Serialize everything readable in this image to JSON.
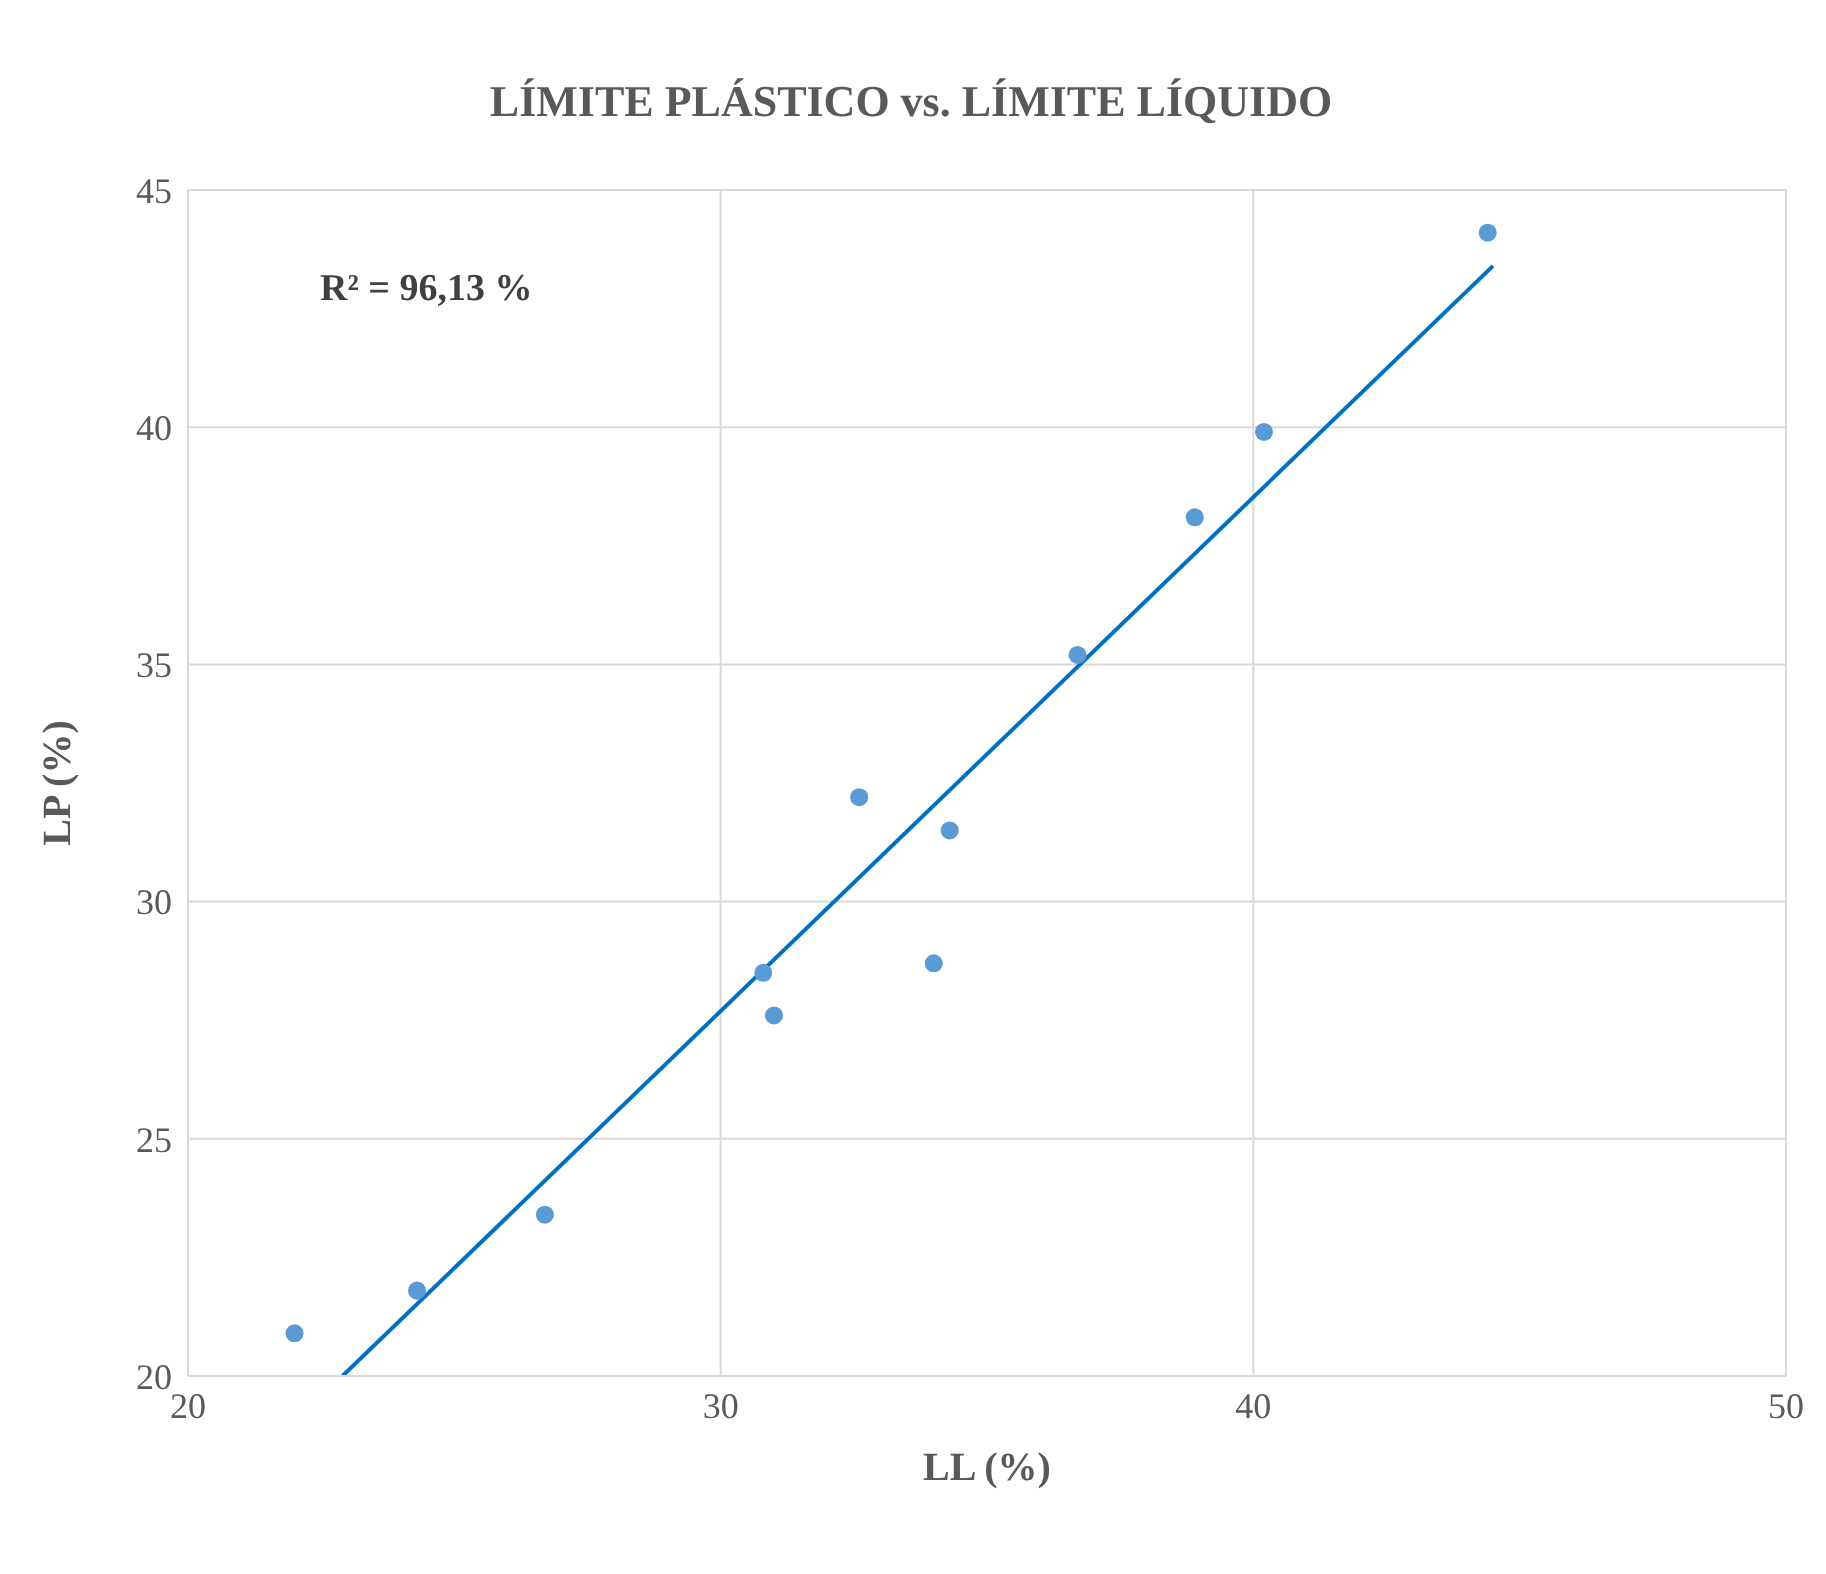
{
  "chart_data": {
    "type": "scatter",
    "title": "LÍMITE PLÁSTICO vs. LÍMITE LÍQUIDO",
    "xlabel": "LL (%)",
    "ylabel": "LP (%)",
    "annotations": [
      "R² = 96,13 %"
    ],
    "xlim": [
      20,
      50
    ],
    "ylim": [
      20,
      45
    ],
    "xticks": [
      20,
      30,
      40,
      50
    ],
    "yticks": [
      20,
      25,
      30,
      35,
      40,
      45
    ],
    "grid": true,
    "series": [
      {
        "color": "#5b9bd5",
        "marker": "circle",
        "x": [
          22.0,
          24.3,
          26.7,
          30.8,
          31.0,
          32.6,
          34.3,
          34.0,
          36.7,
          38.9,
          40.2,
          44.4
        ],
        "values": [
          20.9,
          21.8,
          23.4,
          28.5,
          27.6,
          32.2,
          31.5,
          28.7,
          35.2,
          38.1,
          39.9,
          44.1
        ]
      },
      {
        "type": "line",
        "color": "#0070c0",
        "marker": "none",
        "line_style": "solid",
        "x": [
          22.9,
          44.5
        ],
        "values": [
          20.0,
          43.4
        ]
      }
    ]
  }
}
